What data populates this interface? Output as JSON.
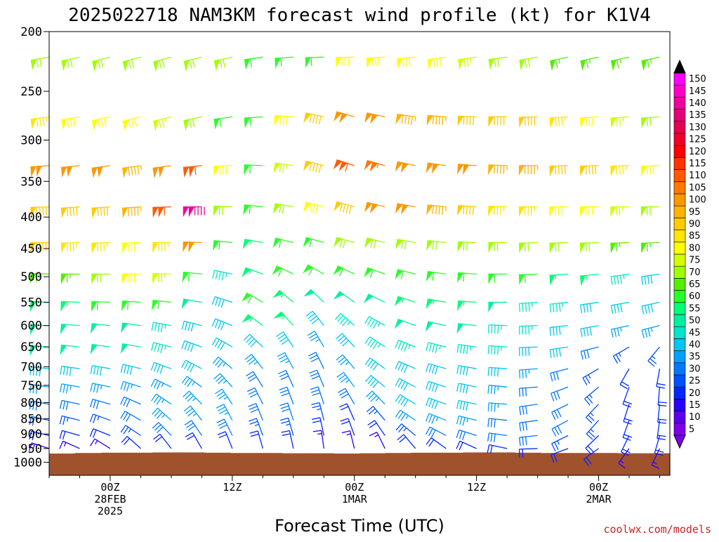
{
  "chart_data": {
    "type": "wind-barb-profile",
    "title": "2025022718 NAM3KM forecast wind profile (kt) for K1V4",
    "xlabel": "Forecast Time (UTC)",
    "ylabel": "",
    "credit": "coolwx.com/models",
    "y_axis": {
      "scale": "log-pressure",
      "range": [
        1000,
        200
      ],
      "ticks": [
        200,
        250,
        300,
        350,
        400,
        450,
        500,
        550,
        600,
        650,
        700,
        750,
        800,
        850,
        900,
        950,
        1000
      ]
    },
    "x_axis": {
      "range_hours": [
        -6,
        55
      ],
      "ticks": [
        {
          "hour": 0,
          "lines": [
            "00Z",
            "28FEB",
            "2025"
          ]
        },
        {
          "hour": 12,
          "lines": [
            "12Z"
          ]
        },
        {
          "hour": 24,
          "lines": [
            "00Z",
            "1MAR"
          ]
        },
        {
          "hour": 36,
          "lines": [
            "12Z"
          ]
        },
        {
          "hour": 48,
          "lines": [
            "00Z",
            "2MAR"
          ]
        }
      ]
    },
    "colorbar": {
      "values": [
        5,
        10,
        15,
        20,
        25,
        30,
        35,
        40,
        45,
        50,
        55,
        60,
        65,
        70,
        75,
        80,
        85,
        90,
        95,
        100,
        105,
        110,
        115,
        120,
        125,
        130,
        135,
        140,
        145,
        150
      ],
      "labels": [
        "5",
        "10",
        "15",
        "20",
        "25",
        "30",
        "35",
        "40",
        "45",
        "50",
        "55",
        "60",
        "65",
        "70",
        "75",
        "80",
        "85",
        "90",
        "95",
        "100",
        "105",
        "110",
        "115",
        "120",
        "125",
        "130",
        "135",
        "140",
        "145",
        "150"
      ],
      "colors": [
        "#7d00e6",
        "#5a00f0",
        "#2a00ff",
        "#0028ff",
        "#0050ff",
        "#0078ff",
        "#00a0ff",
        "#00c8f0",
        "#00e6c8",
        "#00f0a0",
        "#00ff78",
        "#28ff28",
        "#50f000",
        "#a0ff00",
        "#d2ff00",
        "#ffff00",
        "#ffe600",
        "#ffcc00",
        "#ffb400",
        "#ff9600",
        "#ff7800",
        "#ff5a00",
        "#ff3200",
        "#ff0000",
        "#f00028",
        "#e60050",
        "#e60078",
        "#f000a0",
        "#ff00c8",
        "#ff00ff"
      ]
    },
    "ground_pressure_hpa": [
      968,
      966,
      965,
      965,
      964,
      964,
      965,
      966,
      966,
      967,
      967,
      968,
      967,
      966,
      965,
      965,
      964,
      964,
      965,
      966,
      966,
      966,
      967,
      967
    ],
    "ground_color": "#a0522d",
    "barbs": {
      "hours": [
        -6,
        -3,
        0,
        3,
        6,
        9,
        12,
        15,
        18,
        21,
        24,
        27,
        30,
        33,
        36,
        39,
        42,
        45,
        48,
        51,
        54
      ],
      "levels": [
        {
          "p": 220,
          "dir": [
            260,
            258,
            256,
            255,
            255,
            256,
            258,
            262,
            266,
            268,
            268,
            266,
            264,
            262,
            262,
            262,
            260,
            258,
            258,
            258,
            258
          ],
          "spd": [
            70,
            70,
            70,
            70,
            70,
            70,
            68,
            62,
            58,
            62,
            78,
            80,
            80,
            80,
            75,
            70,
            68,
            66,
            65,
            65,
            65
          ]
        },
        {
          "p": 275,
          "dir": [
            262,
            260,
            258,
            256,
            256,
            258,
            262,
            266,
            274,
            282,
            286,
            282,
            278,
            274,
            272,
            270,
            268,
            266,
            266,
            266,
            266
          ],
          "spd": [
            85,
            80,
            80,
            80,
            75,
            70,
            62,
            58,
            82,
            90,
            98,
            100,
            95,
            95,
            90,
            90,
            90,
            85,
            80,
            75,
            70
          ]
        },
        {
          "p": 330,
          "dir": [
            266,
            264,
            262,
            262,
            262,
            264,
            268,
            272,
            278,
            284,
            288,
            286,
            282,
            278,
            274,
            272,
            270,
            268,
            268,
            268,
            268
          ],
          "spd": [
            98,
            98,
            98,
            95,
            100,
            110,
            80,
            62,
            75,
            90,
            110,
            105,
            100,
            100,
            100,
            95,
            95,
            90,
            90,
            85,
            80
          ]
        },
        {
          "p": 385,
          "dir": [
            268,
            266,
            266,
            266,
            268,
            270,
            272,
            276,
            280,
            284,
            286,
            284,
            280,
            276,
            274,
            272,
            270,
            270,
            270,
            270,
            270
          ],
          "spd": [
            92,
            92,
            92,
            95,
            110,
            140,
            70,
            58,
            68,
            80,
            92,
            100,
            100,
            95,
            90,
            85,
            85,
            80,
            80,
            75,
            70
          ]
        },
        {
          "p": 440,
          "dir": [
            270,
            268,
            268,
            268,
            270,
            272,
            276,
            280,
            284,
            286,
            286,
            284,
            280,
            276,
            272,
            270,
            268,
            268,
            268,
            268,
            268
          ],
          "spd": [
            88,
            85,
            85,
            80,
            85,
            100,
            60,
            55,
            60,
            62,
            68,
            68,
            70,
            70,
            70,
            70,
            70,
            70,
            70,
            65,
            65
          ]
        },
        {
          "p": 495,
          "dir": [
            272,
            270,
            270,
            270,
            272,
            276,
            282,
            290,
            296,
            300,
            296,
            290,
            284,
            278,
            274,
            270,
            268,
            266,
            264,
            262,
            262
          ],
          "spd": [
            65,
            65,
            70,
            80,
            75,
            60,
            45,
            55,
            58,
            60,
            62,
            62,
            62,
            60,
            60,
            60,
            60,
            55,
            55,
            45,
            40
          ]
        },
        {
          "p": 550,
          "dir": [
            272,
            272,
            272,
            274,
            276,
            280,
            288,
            300,
            310,
            314,
            306,
            296,
            288,
            280,
            274,
            270,
            266,
            264,
            262,
            260,
            258
          ],
          "spd": [
            55,
            55,
            60,
            62,
            60,
            48,
            42,
            58,
            55,
            48,
            50,
            52,
            55,
            55,
            55,
            50,
            45,
            45,
            40,
            40,
            40
          ]
        },
        {
          "p": 600,
          "dir": [
            272,
            274,
            276,
            278,
            280,
            284,
            292,
            306,
            318,
            322,
            312,
            300,
            290,
            282,
            276,
            272,
            268,
            264,
            260,
            258,
            256
          ],
          "spd": [
            52,
            52,
            50,
            50,
            45,
            40,
            40,
            55,
            55,
            38,
            45,
            45,
            50,
            50,
            50,
            45,
            45,
            40,
            40,
            35,
            35
          ]
        },
        {
          "p": 650,
          "dir": [
            274,
            276,
            278,
            280,
            284,
            290,
            300,
            314,
            326,
            330,
            318,
            304,
            292,
            284,
            278,
            274,
            268,
            262,
            256,
            240,
            220
          ],
          "spd": [
            50,
            50,
            50,
            48,
            45,
            40,
            38,
            40,
            40,
            35,
            40,
            45,
            45,
            45,
            45,
            45,
            40,
            40,
            30,
            25,
            25
          ]
        },
        {
          "p": 705,
          "dir": [
            276,
            278,
            280,
            284,
            290,
            298,
            310,
            322,
            332,
            334,
            320,
            306,
            294,
            286,
            280,
            274,
            266,
            256,
            240,
            210,
            190
          ],
          "spd": [
            40,
            40,
            42,
            42,
            40,
            38,
            35,
            35,
            35,
            30,
            35,
            40,
            42,
            42,
            40,
            38,
            35,
            30,
            25,
            20,
            20
          ]
        },
        {
          "p": 755,
          "dir": [
            278,
            280,
            282,
            288,
            296,
            306,
            318,
            328,
            336,
            338,
            324,
            310,
            298,
            288,
            282,
            276,
            266,
            250,
            230,
            200,
            185
          ],
          "spd": [
            35,
            35,
            35,
            35,
            35,
            35,
            35,
            32,
            30,
            30,
            35,
            40,
            42,
            40,
            38,
            35,
            30,
            28,
            25,
            20,
            18
          ]
        },
        {
          "p": 805,
          "dir": [
            280,
            282,
            286,
            294,
            304,
            316,
            326,
            334,
            340,
            342,
            330,
            316,
            302,
            290,
            282,
            274,
            262,
            244,
            224,
            198,
            186
          ],
          "spd": [
            30,
            30,
            30,
            32,
            35,
            35,
            35,
            30,
            28,
            30,
            30,
            35,
            40,
            40,
            38,
            35,
            30,
            28,
            25,
            20,
            18
          ]
        },
        {
          "p": 855,
          "dir": [
            282,
            284,
            290,
            300,
            312,
            322,
            332,
            338,
            342,
            346,
            336,
            320,
            304,
            292,
            284,
            276,
            262,
            242,
            222,
            200,
            188
          ],
          "spd": [
            25,
            25,
            25,
            30,
            35,
            35,
            35,
            30,
            28,
            25,
            22,
            25,
            35,
            35,
            35,
            32,
            30,
            28,
            25,
            22,
            20
          ]
        },
        {
          "p": 905,
          "dir": [
            284,
            286,
            292,
            304,
            316,
            326,
            334,
            340,
            344,
            348,
            340,
            326,
            310,
            298,
            288,
            278,
            264,
            244,
            226,
            206,
            196
          ],
          "spd": [
            20,
            20,
            22,
            25,
            30,
            30,
            30,
            25,
            25,
            20,
            18,
            20,
            25,
            28,
            30,
            30,
            28,
            25,
            22,
            20,
            20
          ]
        },
        {
          "p": 950,
          "dir": [
            288,
            294,
            302,
            312,
            322,
            330,
            338,
            344,
            348,
            352,
            346,
            334,
            320,
            306,
            294,
            282,
            268,
            250,
            234,
            216,
            206
          ],
          "spd": [
            15,
            15,
            15,
            18,
            20,
            20,
            20,
            20,
            18,
            15,
            15,
            15,
            18,
            20,
            20,
            20,
            20,
            18,
            18,
            15,
            15
          ]
        }
      ]
    }
  }
}
